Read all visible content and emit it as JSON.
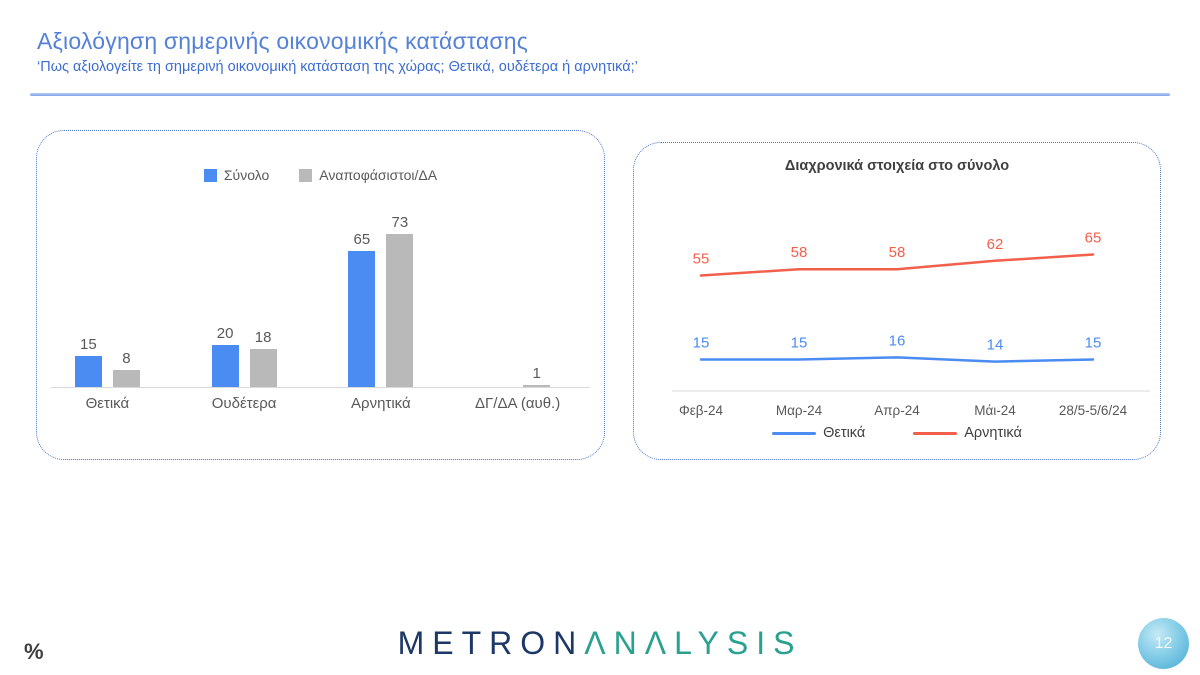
{
  "header": {
    "title": "Αξιολόγηση σημερινής οικονομικής κατάστασης",
    "subtitle": "‘Πως αξιολογείτε τη σημερινή οικονομική κατάσταση της χώρας; Θετικά, ουδέτερα ή αρνητικά;’"
  },
  "chart_data": [
    {
      "type": "bar",
      "title": "",
      "categories": [
        "Θετικά",
        "Ουδέτερα",
        "Αρνητικά",
        "ΔΓ/ΔΑ (αυθ.)"
      ],
      "series": [
        {
          "name": "Σύνολο",
          "color": "#4a8cf2",
          "values": [
            15,
            20,
            65,
            null
          ]
        },
        {
          "name": "Αναποφάσιστοι/ΔΑ",
          "color": "#b9b9b9",
          "values": [
            8,
            18,
            73,
            1
          ]
        }
      ],
      "ylim": [
        0,
        80
      ],
      "grid": false,
      "legend_position": "top",
      "data_labels": true,
      "label_color": "#595959"
    },
    {
      "type": "line",
      "title": "Διαχρονικά στοιχεία στο σύνολο",
      "x": [
        "Φεβ-24",
        "Μαρ-24",
        "Απρ-24",
        "Μάι-24",
        "28/5-5/6/24"
      ],
      "series": [
        {
          "name": "Θετικά",
          "color": "#4a8cf2",
          "values": [
            15,
            15,
            16,
            14,
            15
          ]
        },
        {
          "name": "Αρνητικά",
          "color": "#f2604c",
          "values": [
            55,
            58,
            58,
            62,
            65
          ]
        }
      ],
      "ylim": [
        0,
        100
      ],
      "grid": false,
      "legend_position": "bottom",
      "data_labels": true,
      "tick_color": "#595959"
    }
  ],
  "footer": {
    "percent_sign": "%",
    "logo_part1": "METRON",
    "logo_part2": "ΛNΛLYSIS",
    "page_number": "12"
  }
}
